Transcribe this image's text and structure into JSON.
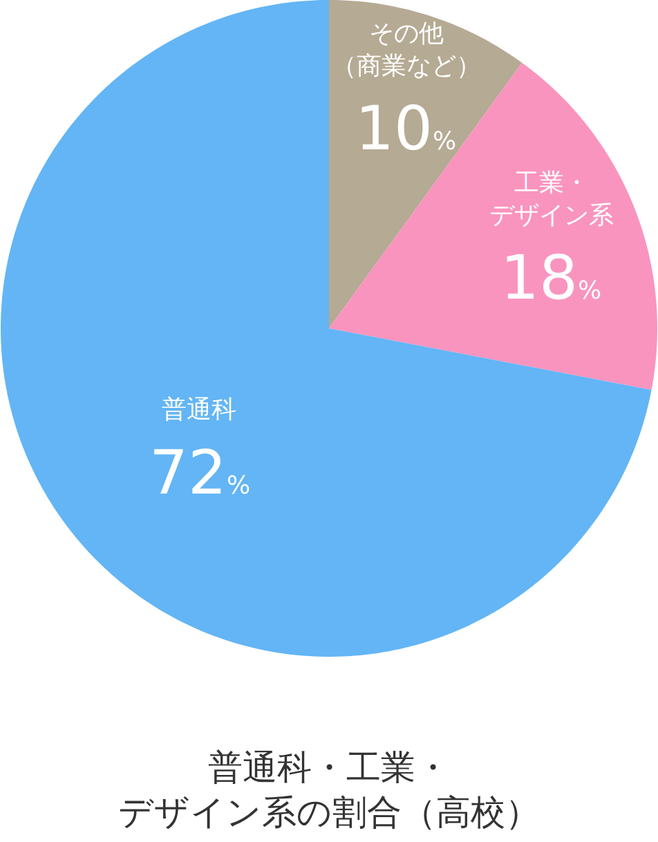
{
  "chart_data": {
    "type": "pie",
    "title": "普通科・工業・デザイン系の割合（高校）",
    "categories": [
      "その他（商業など）",
      "工業・デザイン系",
      "普通科"
    ],
    "values": [
      10,
      18,
      72
    ],
    "value_labels": [
      "10%",
      "18%",
      "72%"
    ],
    "colors": [
      "#b5aa93",
      "#f994bf",
      "#63b5f5"
    ]
  }
}
